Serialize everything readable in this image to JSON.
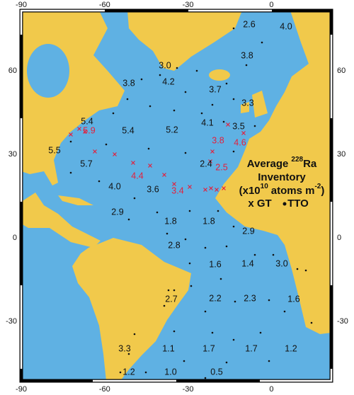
{
  "axes": {
    "lon_ticks": [
      "-90",
      "-60",
      "-30",
      "0"
    ],
    "lat_ticks": [
      "60",
      "30",
      "0",
      "-30"
    ]
  },
  "map": {
    "ocean_color": "#5fb1e3",
    "land_color": "#f1c94b",
    "gt_color": "#e3203d",
    "tto_color": "#111111"
  },
  "labels": [
    {
      "text": "2.6",
      "source": "tto"
    },
    {
      "text": "4.0",
      "source": "tto"
    },
    {
      "text": "3.8",
      "source": "tto"
    },
    {
      "text": "3.0",
      "source": "tto"
    },
    {
      "text": "3.8",
      "source": "tto"
    },
    {
      "text": "4.2",
      "source": "tto"
    },
    {
      "text": "3.7",
      "source": "tto"
    },
    {
      "text": "3.3",
      "source": "tto"
    },
    {
      "text": "5.4",
      "source": "tto"
    },
    {
      "text": "5.9",
      "source": "gt"
    },
    {
      "text": "5.4",
      "source": "tto"
    },
    {
      "text": "5.2",
      "source": "tto"
    },
    {
      "text": "4.1",
      "source": "tto"
    },
    {
      "text": "3.5",
      "source": "tto"
    },
    {
      "text": "3.8",
      "source": "gt"
    },
    {
      "text": "4.6",
      "source": "gt"
    },
    {
      "text": "5.5",
      "source": "tto"
    },
    {
      "text": "5.7",
      "source": "tto"
    },
    {
      "text": "2.4",
      "source": "tto"
    },
    {
      "text": "2.5",
      "source": "gt"
    },
    {
      "text": "4.4",
      "source": "gt"
    },
    {
      "text": "4.0",
      "source": "tto"
    },
    {
      "text": "3.6",
      "source": "tto"
    },
    {
      "text": "3.4",
      "source": "gt"
    },
    {
      "text": "2.9",
      "source": "tto"
    },
    {
      "text": "1.8",
      "source": "tto"
    },
    {
      "text": "1.8",
      "source": "tto"
    },
    {
      "text": "2.9",
      "source": "tto"
    },
    {
      "text": "2.8",
      "source": "tto"
    },
    {
      "text": "1.6",
      "source": "tto"
    },
    {
      "text": "1.4",
      "source": "tto"
    },
    {
      "text": "3.0",
      "source": "tto"
    },
    {
      "text": "2.7",
      "source": "tto"
    },
    {
      "text": "2.2",
      "source": "tto"
    },
    {
      "text": "2.3",
      "source": "tto"
    },
    {
      "text": "1.6",
      "source": "tto"
    },
    {
      "text": "3.3",
      "source": "tto"
    },
    {
      "text": "1.1",
      "source": "tto"
    },
    {
      "text": "1.7",
      "source": "tto"
    },
    {
      "text": "1.7",
      "source": "tto"
    },
    {
      "text": "1.2",
      "source": "tto"
    },
    {
      "text": "1.2",
      "source": "tto"
    },
    {
      "text": "1.0",
      "source": "tto"
    },
    {
      "text": "0.5",
      "source": "tto"
    }
  ],
  "legend": {
    "title": [
      "Average",
      "228",
      "Ra"
    ],
    "line2": "Inventory",
    "line3": [
      "(x10",
      "10",
      "atoms m",
      "-2",
      ")"
    ],
    "gt": "x GT",
    "tto": "TTO"
  }
}
